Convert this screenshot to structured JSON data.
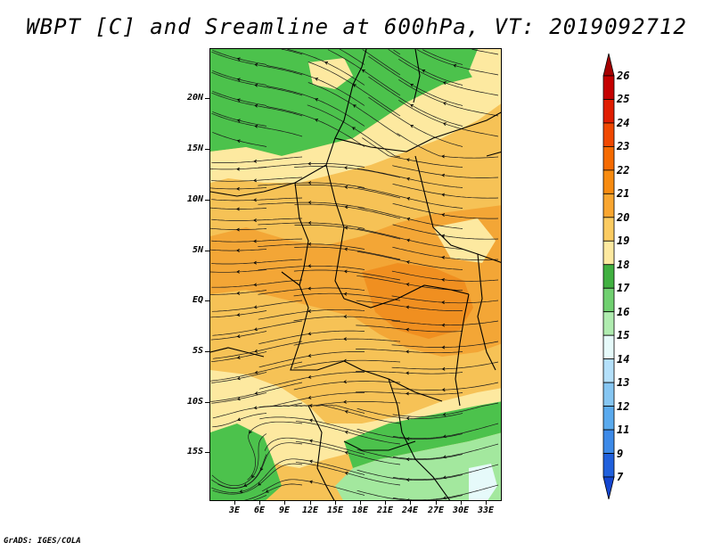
{
  "title": "WBPT [C] and Sreamline at 600hPa, VT: 2019092712",
  "credit": "GrADS: IGES/COLA",
  "map": {
    "lat_labels": [
      "20N",
      "15N",
      "10N",
      "5N",
      "EQ",
      "5S",
      "10S",
      "15S"
    ],
    "lon_labels": [
      "3E",
      "6E",
      "9E",
      "12E",
      "15E",
      "18E",
      "21E",
      "24E",
      "27E",
      "30E",
      "33E"
    ],
    "region_colors": {
      "green": "#4cc24c",
      "light_green": "#a3e89e",
      "pale_yellow": "#fde9a0",
      "orange_light": "#f6c256",
      "orange": "#f3a636",
      "orange_deep": "#f08f20"
    }
  },
  "colorbar": {
    "labels": [
      "26",
      "25",
      "24",
      "23",
      "22",
      "21",
      "20",
      "19",
      "18",
      "17",
      "16",
      "15",
      "14",
      "13",
      "12",
      "11",
      "9",
      "7"
    ],
    "colors": [
      "#a50000",
      "#c40000",
      "#e01d00",
      "#f04800",
      "#f56a00",
      "#f78b10",
      "#f9a630",
      "#fbcb61",
      "#fde9a0",
      "#40b040",
      "#70d070",
      "#b0ecb0",
      "#e6fafa",
      "#b4e0fa",
      "#86c6f2",
      "#5aaaee",
      "#3d8ae8",
      "#2060dc",
      "#1446d0"
    ]
  }
}
